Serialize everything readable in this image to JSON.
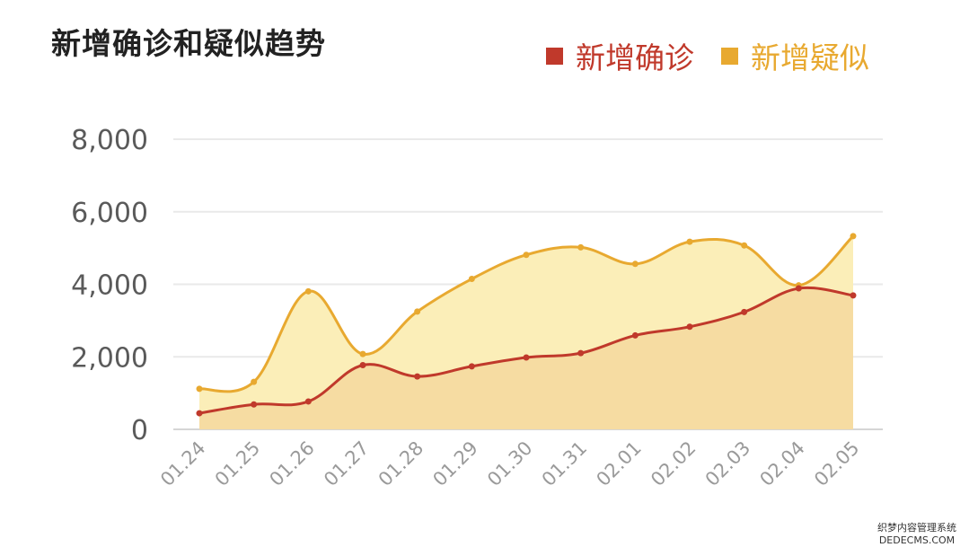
{
  "chart_data": {
    "type": "area",
    "title": "新增确诊和疑似趋势",
    "categories": [
      "01.24",
      "01.25",
      "01.26",
      "01.27",
      "01.28",
      "01.29",
      "01.30",
      "01.31",
      "02.01",
      "02.02",
      "02.03",
      "02.04",
      "02.05"
    ],
    "series": [
      {
        "name": "新增确诊",
        "color": "#c0392b",
        "fill": "#f5d9a0",
        "values": [
          444,
          688,
          769,
          1771,
          1459,
          1737,
          1982,
          2102,
          2590,
          2829,
          3235,
          3887,
          3694
        ]
      },
      {
        "name": "新增疑似",
        "color": "#e8a930",
        "fill": "#fbeeb8",
        "values": [
          1118,
          1309,
          3806,
          2077,
          3248,
          4148,
          4812,
          5019,
          4562,
          5173,
          5072,
          3971,
          5328
        ]
      }
    ],
    "yticks": [
      0,
      2000,
      4000,
      6000,
      8000
    ],
    "ytick_labels": [
      "0",
      "2,000",
      "4,000",
      "6,000",
      "8,000"
    ],
    "ylim": [
      0,
      8000
    ],
    "grid": true,
    "legend_position": "top-right"
  },
  "watermark": {
    "line1": "织梦内容管理系统",
    "line2": "DEDECMS.COM"
  }
}
